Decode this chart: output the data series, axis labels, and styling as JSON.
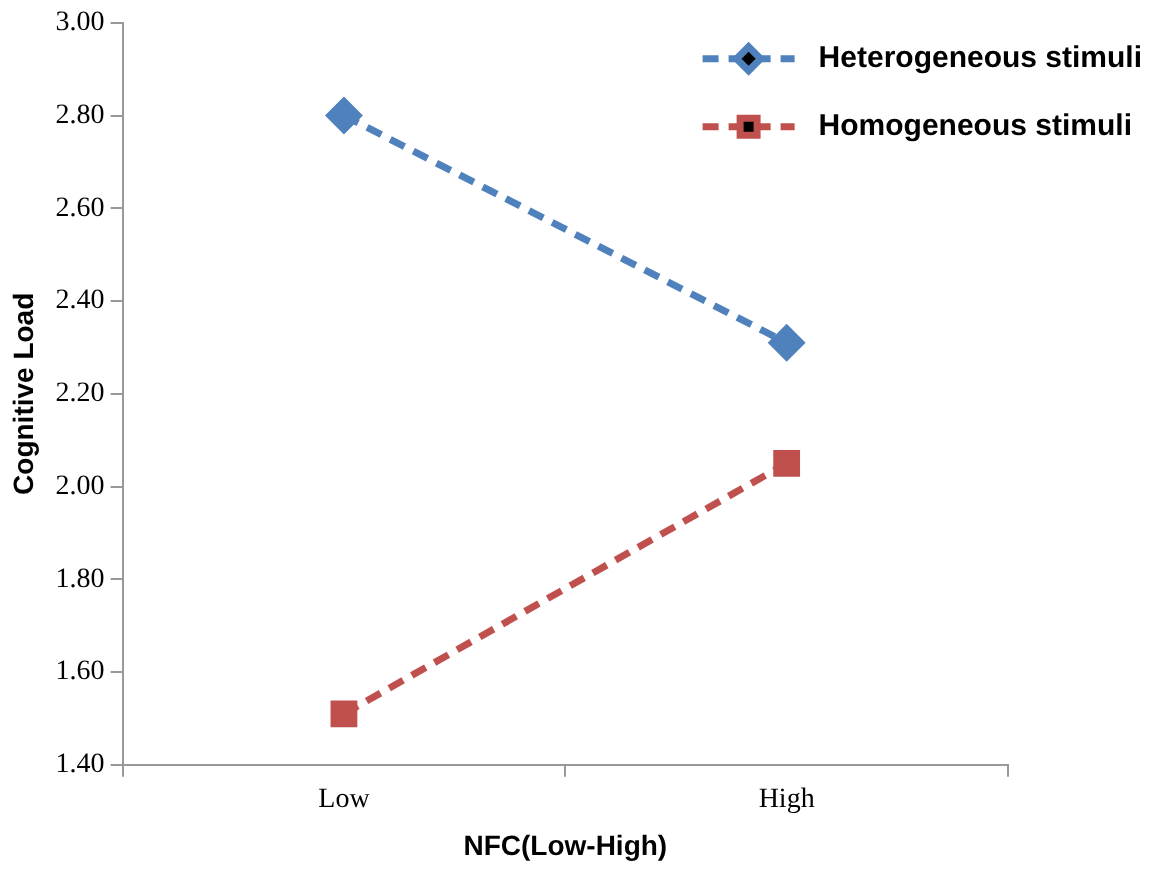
{
  "chart_data": {
    "type": "line",
    "xlabel": "NFC(Low-High)",
    "ylabel": "Cognitive Load",
    "categories": [
      "Low",
      "High"
    ],
    "series": [
      {
        "name": "Heterogeneous stimuli",
        "color": "#4f81bd",
        "values": [
          2.8,
          2.31
        ],
        "marker": "diamond"
      },
      {
        "name": "Homogeneous stimuli",
        "color": "#c0504d",
        "values": [
          1.51,
          2.05
        ],
        "marker": "square"
      }
    ],
    "ylim": [
      1.4,
      3.0
    ],
    "yticks": [
      {
        "value": 1.4,
        "label": "1.40"
      },
      {
        "value": 1.6,
        "label": "1.60"
      },
      {
        "value": 1.8,
        "label": "1.80"
      },
      {
        "value": 2.0,
        "label": "2.00"
      },
      {
        "value": 2.2,
        "label": "2.20"
      },
      {
        "value": 2.4,
        "label": "2.40"
      },
      {
        "value": 2.6,
        "label": "2.60"
      },
      {
        "value": 2.8,
        "label": "2.80"
      },
      {
        "value": 3.0,
        "label": "3.00"
      }
    ],
    "grid": false,
    "legend": "top right",
    "line_style": "dashed"
  }
}
